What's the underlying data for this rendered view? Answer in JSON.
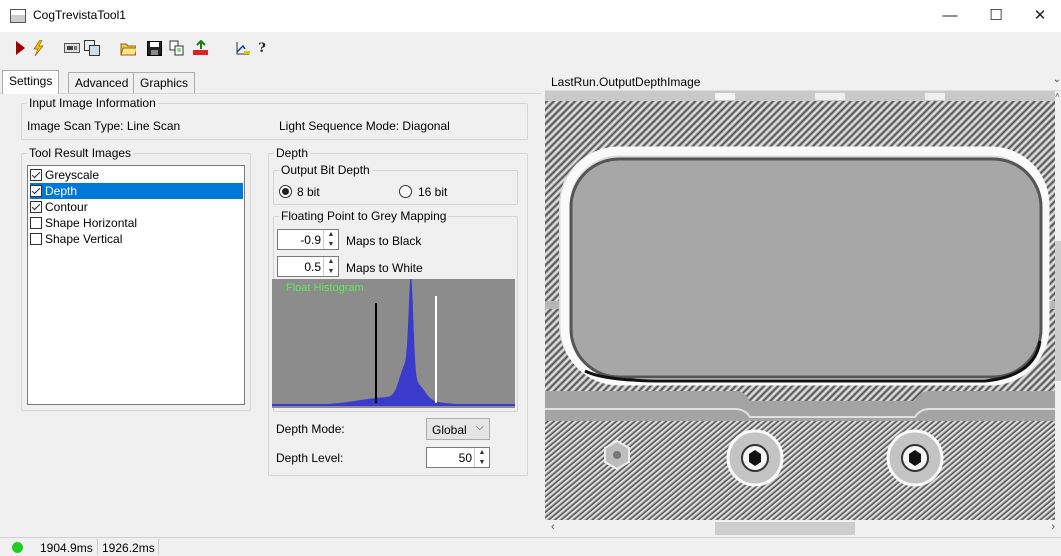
{
  "window": {
    "title": "CogTrevistaTool1",
    "minimize": "—",
    "maximize": "☐",
    "close": "✕"
  },
  "toolbar": {
    "icons": [
      "run-icon",
      "electric-run-icon",
      "display-icon",
      "local-image-icon",
      "open-folder-icon",
      "save-icon",
      "copy-icon",
      "reset-icon",
      "graphics-icon",
      "help-icon"
    ],
    "help_glyph": "?"
  },
  "tabs": [
    {
      "label": "Settings",
      "active": true
    },
    {
      "label": "Advanced",
      "active": false
    },
    {
      "label": "Graphics",
      "active": false
    }
  ],
  "input_info": {
    "legend": "Input Image Information",
    "scan_type": "Image Scan Type: Line Scan",
    "light_sequence": "Light Sequence Mode: Diagonal"
  },
  "result_images": {
    "legend": "Tool Result Images",
    "items": [
      {
        "label": "Greyscale",
        "checked": true,
        "selected": false
      },
      {
        "label": "Depth",
        "checked": true,
        "selected": true
      },
      {
        "label": "Contour",
        "checked": true,
        "selected": false
      },
      {
        "label": "Shape Horizontal",
        "checked": false,
        "selected": false
      },
      {
        "label": "Shape Vertical",
        "checked": false,
        "selected": false
      }
    ]
  },
  "depth": {
    "legend": "Depth",
    "bit_depth": {
      "legend": "Output Bit Depth",
      "opt8": "8 bit",
      "opt16": "16 bit",
      "selected": "8 bit"
    },
    "mapping": {
      "legend": "Floating Point to Grey Mapping",
      "black_value": "-0.9",
      "black_label": "Maps to Black",
      "white_value": "0.5",
      "white_label": "Maps to White"
    },
    "histogram": {
      "label": "Float Histogram",
      "bar_color": "#3a3acc",
      "label_color": "#5fe85f"
    },
    "mode_label": "Depth Mode:",
    "mode_value": "Global",
    "level_label": "Depth Level:",
    "level_value": "50"
  },
  "image_view": {
    "title": "LastRun.OutputDepthImage"
  },
  "status": {
    "indicator_color": "#22cc22",
    "time1": "1904.9ms",
    "time2": "1926.2ms"
  }
}
